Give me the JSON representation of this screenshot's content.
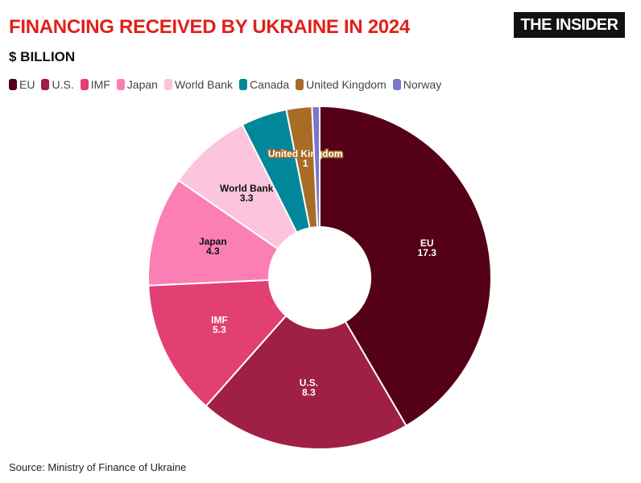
{
  "header": {
    "title": "FINANCING RECEIVED BY UKRAINE IN 2024",
    "subtitle": "$ BILLION",
    "logo": "THE INSIDER"
  },
  "source": "Source: Ministry of Finance of Ukraine",
  "chart_data": {
    "type": "pie",
    "donut": true,
    "legend_position": "top-left",
    "categories": [
      "EU",
      "U.S.",
      "IMF",
      "Japan",
      "World Bank",
      "Canada",
      "United Kingdom",
      "Norway"
    ],
    "values": [
      17.3,
      8.3,
      5.3,
      4.3,
      3.3,
      1.8,
      1,
      0.3
    ],
    "labels_shown": [
      true,
      true,
      true,
      true,
      true,
      false,
      true,
      false
    ],
    "colors": [
      "#540017",
      "#a01f45",
      "#e23f72",
      "#fb7fb4",
      "#fcc4dd",
      "#00879a",
      "#a86c26",
      "#7a77c9"
    ],
    "label_colors": [
      "#ffffff",
      "#ffffff",
      "#ffffff",
      "#111111",
      "#111111",
      "#ffffff",
      "#ffffff",
      "#ffffff"
    ]
  }
}
